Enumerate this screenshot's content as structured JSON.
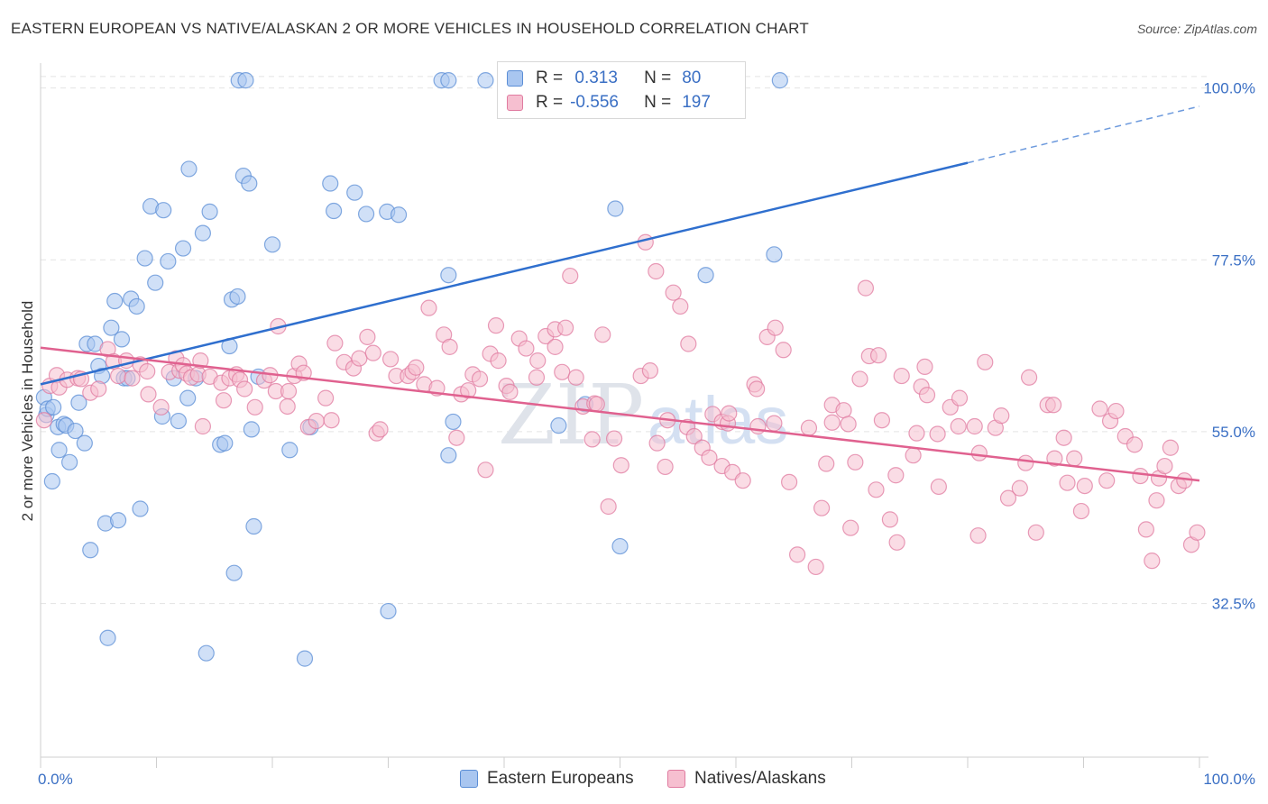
{
  "title": "EASTERN EUROPEAN VS NATIVE/ALASKAN 2 OR MORE VEHICLES IN HOUSEHOLD CORRELATION CHART",
  "source": "Source: ZipAtlas.com",
  "watermark": {
    "zip": "ZIP",
    "atlas": "atlas"
  },
  "legend": {
    "rows": [
      {
        "r_label": "R =",
        "r_value": " 0.313",
        "n_label": "N =",
        "n_value": "80",
        "color": "#a9c6f0",
        "border": "#5b8ed6"
      },
      {
        "r_label": "R =",
        "r_value": "-0.556",
        "n_label": "N =",
        "n_value": "197",
        "color": "#f6bfd0",
        "border": "#e07ba0"
      }
    ]
  },
  "bottom_legend": [
    {
      "label": "Eastern Europeans",
      "color": "#a9c6f0",
      "border": "#5b8ed6"
    },
    {
      "label": "Natives/Alaskans",
      "color": "#f6bfd0",
      "border": "#e07ba0"
    }
  ],
  "chart_data": {
    "type": "scatter",
    "title": "EASTERN EUROPEAN VS NATIVE/ALASKAN 2 OR MORE VEHICLES IN HOUSEHOLD CORRELATION CHART",
    "xlabel": "",
    "ylabel": "2 or more Vehicles in Household",
    "x_tick_labels": [
      "0.0%",
      "100.0%"
    ],
    "y_tick_labels": [
      "100.0%",
      "77.5%",
      "55.0%",
      "32.5%"
    ],
    "y_ticks": [
      100.0,
      77.5,
      55.0,
      32.5
    ],
    "xlim": [
      0,
      100
    ],
    "ylim": [
      12.5,
      102
    ],
    "grid": true,
    "legend_position": "top-center",
    "series": [
      {
        "name": "Eastern Europeans",
        "color": "#5b8ed6",
        "fill": "#a9c6f0",
        "trend": {
          "x0": 0,
          "y0": 61.2,
          "x1": 80,
          "y1": 90.2,
          "dashed_to_x": 100,
          "dashed_y1": 97.6,
          "color": "#2f6fce"
        },
        "points": [
          [
            0.3,
            59.5
          ],
          [
            0.5,
            57.2
          ],
          [
            0.6,
            58.0
          ],
          [
            1.0,
            48.5
          ],
          [
            1.1,
            58.2
          ],
          [
            1.5,
            55.6
          ],
          [
            1.6,
            52.6
          ],
          [
            2.0,
            56.0
          ],
          [
            2.2,
            55.8
          ],
          [
            2.5,
            51.0
          ],
          [
            3.0,
            55.1
          ],
          [
            3.3,
            58.8
          ],
          [
            3.8,
            53.5
          ],
          [
            4.0,
            66.5
          ],
          [
            4.3,
            39.5
          ],
          [
            4.7,
            66.5
          ],
          [
            5.0,
            63.6
          ],
          [
            5.3,
            62.3
          ],
          [
            5.6,
            43.0
          ],
          [
            5.8,
            28.0
          ],
          [
            6.1,
            68.6
          ],
          [
            6.4,
            72.1
          ],
          [
            6.7,
            43.4
          ],
          [
            7.0,
            67.1
          ],
          [
            7.2,
            62.0
          ],
          [
            7.5,
            62.0
          ],
          [
            7.8,
            72.4
          ],
          [
            8.3,
            71.4
          ],
          [
            8.6,
            44.9
          ],
          [
            9.0,
            77.7
          ],
          [
            9.5,
            84.5
          ],
          [
            9.9,
            74.5
          ],
          [
            10.5,
            57.0
          ],
          [
            10.6,
            84.0
          ],
          [
            11.0,
            77.3
          ],
          [
            11.5,
            62.0
          ],
          [
            11.9,
            56.4
          ],
          [
            12.3,
            79.0
          ],
          [
            12.7,
            59.4
          ],
          [
            12.8,
            89.4
          ],
          [
            13.4,
            62.0
          ],
          [
            14.0,
            81.0
          ],
          [
            14.3,
            26.0
          ],
          [
            14.6,
            83.8
          ],
          [
            15.5,
            53.3
          ],
          [
            15.9,
            53.5
          ],
          [
            16.3,
            66.2
          ],
          [
            16.5,
            72.3
          ],
          [
            16.7,
            36.5
          ],
          [
            17.0,
            72.7
          ],
          [
            17.5,
            88.5
          ],
          [
            18.0,
            87.5
          ],
          [
            18.2,
            55.3
          ],
          [
            18.4,
            42.6
          ],
          [
            18.8,
            62.2
          ],
          [
            20.0,
            79.5
          ],
          [
            21.5,
            52.6
          ],
          [
            22.8,
            25.3
          ],
          [
            23.3,
            55.6
          ],
          [
            25.0,
            87.5
          ],
          [
            25.3,
            83.9
          ],
          [
            27.1,
            86.3
          ],
          [
            28.1,
            83.5
          ],
          [
            29.9,
            83.8
          ],
          [
            30.9,
            83.4
          ],
          [
            30.0,
            31.5
          ],
          [
            34.6,
            101.0
          ],
          [
            35.2,
            101.0
          ],
          [
            35.2,
            75.5
          ],
          [
            35.2,
            51.9
          ],
          [
            35.6,
            56.3
          ],
          [
            38.4,
            101.0
          ],
          [
            44.7,
            55.8
          ],
          [
            47.0,
            58.6
          ],
          [
            49.6,
            84.2
          ],
          [
            50.0,
            40.0
          ],
          [
            57.4,
            75.5
          ],
          [
            63.3,
            78.2
          ],
          [
            63.8,
            101.0
          ],
          [
            17.1,
            101.0
          ],
          [
            17.7,
            101.0
          ]
        ]
      },
      {
        "name": "Natives/Alaskans",
        "color": "#e07ba0",
        "fill": "#f6bfd0",
        "trend": {
          "x0": 0,
          "y0": 66.0,
          "x1": 100,
          "y1": 48.6,
          "color": "#e0618f"
        },
        "points": [
          [
            0.3,
            56.5
          ],
          [
            0.8,
            61.0
          ],
          [
            1.4,
            62.4
          ],
          [
            1.6,
            60.8
          ],
          [
            2.3,
            61.8
          ],
          [
            3.2,
            62.0
          ],
          [
            3.5,
            61.9
          ],
          [
            4.3,
            60.1
          ],
          [
            5.0,
            60.6
          ],
          [
            5.8,
            65.8
          ],
          [
            6.3,
            64.2
          ],
          [
            6.7,
            62.3
          ],
          [
            7.4,
            64.3
          ],
          [
            7.9,
            62.0
          ],
          [
            8.6,
            63.8
          ],
          [
            9.2,
            62.9
          ],
          [
            9.3,
            59.9
          ],
          [
            10.4,
            58.2
          ],
          [
            11.1,
            62.8
          ],
          [
            11.7,
            64.6
          ],
          [
            12.0,
            63.0
          ],
          [
            12.3,
            63.7
          ],
          [
            12.6,
            62.6
          ],
          [
            13.0,
            62.1
          ],
          [
            13.6,
            62.5
          ],
          [
            13.8,
            64.3
          ],
          [
            14.0,
            55.7
          ],
          [
            14.6,
            62.2
          ],
          [
            15.6,
            61.4
          ],
          [
            15.8,
            59.1
          ],
          [
            16.3,
            62.0
          ],
          [
            16.9,
            62.5
          ],
          [
            17.2,
            61.8
          ],
          [
            17.6,
            60.6
          ],
          [
            18.5,
            58.2
          ],
          [
            19.3,
            61.7
          ],
          [
            19.8,
            62.4
          ],
          [
            20.3,
            60.3
          ],
          [
            20.5,
            68.8
          ],
          [
            21.3,
            58.3
          ],
          [
            21.4,
            60.3
          ],
          [
            21.9,
            62.3
          ],
          [
            22.3,
            63.9
          ],
          [
            22.7,
            62.7
          ],
          [
            23.1,
            55.6
          ],
          [
            23.8,
            56.4
          ],
          [
            24.6,
            59.4
          ],
          [
            25.1,
            56.5
          ],
          [
            25.4,
            66.6
          ],
          [
            26.2,
            64.1
          ],
          [
            27.0,
            63.3
          ],
          [
            27.5,
            64.6
          ],
          [
            28.2,
            67.4
          ],
          [
            28.7,
            65.3
          ],
          [
            29.0,
            54.8
          ],
          [
            29.3,
            55.3
          ],
          [
            30.2,
            64.5
          ],
          [
            30.7,
            62.3
          ],
          [
            31.7,
            62.3
          ],
          [
            32.1,
            62.8
          ],
          [
            32.4,
            63.4
          ],
          [
            33.1,
            61.2
          ],
          [
            33.5,
            71.2
          ],
          [
            34.2,
            60.7
          ],
          [
            34.8,
            67.7
          ],
          [
            35.3,
            66.1
          ],
          [
            35.9,
            54.2
          ],
          [
            36.3,
            59.9
          ],
          [
            36.9,
            60.4
          ],
          [
            37.3,
            62.5
          ],
          [
            37.9,
            61.9
          ],
          [
            38.4,
            50.0
          ],
          [
            38.8,
            65.2
          ],
          [
            39.3,
            68.9
          ],
          [
            39.5,
            64.3
          ],
          [
            40.2,
            61.0
          ],
          [
            40.5,
            60.2
          ],
          [
            41.3,
            67.2
          ],
          [
            41.9,
            65.9
          ],
          [
            42.8,
            62.1
          ],
          [
            42.9,
            64.3
          ],
          [
            43.6,
            67.5
          ],
          [
            44.4,
            66.1
          ],
          [
            44.4,
            68.4
          ],
          [
            45.0,
            62.8
          ],
          [
            45.3,
            68.6
          ],
          [
            45.7,
            75.4
          ],
          [
            46.2,
            62.1
          ],
          [
            46.8,
            58.3
          ],
          [
            47.6,
            54.0
          ],
          [
            47.8,
            58.7
          ],
          [
            48.0,
            58.6
          ],
          [
            48.5,
            67.7
          ],
          [
            49.0,
            45.2
          ],
          [
            49.5,
            54.1
          ],
          [
            50.1,
            50.6
          ],
          [
            51.8,
            62.3
          ],
          [
            52.6,
            63.0
          ],
          [
            52.2,
            79.8
          ],
          [
            53.1,
            76.0
          ],
          [
            53.2,
            53.5
          ],
          [
            53.9,
            50.4
          ],
          [
            54.1,
            56.5
          ],
          [
            54.6,
            73.2
          ],
          [
            55.2,
            71.4
          ],
          [
            55.8,
            55.6
          ],
          [
            55.9,
            66.5
          ],
          [
            56.4,
            54.4
          ],
          [
            57.1,
            52.9
          ],
          [
            57.7,
            51.6
          ],
          [
            58.0,
            57.3
          ],
          [
            58.8,
            50.5
          ],
          [
            58.8,
            56.3
          ],
          [
            59.3,
            56.1
          ],
          [
            59.4,
            57.4
          ],
          [
            59.7,
            49.7
          ],
          [
            60.6,
            48.6
          ],
          [
            61.6,
            61.2
          ],
          [
            61.8,
            60.6
          ],
          [
            61.9,
            55.7
          ],
          [
            62.7,
            67.4
          ],
          [
            63.3,
            56.1
          ],
          [
            63.4,
            68.6
          ],
          [
            64.1,
            65.7
          ],
          [
            64.6,
            48.4
          ],
          [
            65.3,
            38.9
          ],
          [
            66.3,
            55.5
          ],
          [
            66.9,
            37.3
          ],
          [
            67.4,
            45.0
          ],
          [
            67.8,
            50.8
          ],
          [
            68.3,
            58.5
          ],
          [
            68.3,
            56.2
          ],
          [
            69.3,
            57.8
          ],
          [
            69.7,
            56.0
          ],
          [
            69.9,
            42.4
          ],
          [
            70.3,
            51.0
          ],
          [
            70.7,
            61.9
          ],
          [
            71.2,
            73.8
          ],
          [
            71.5,
            64.9
          ],
          [
            72.1,
            47.4
          ],
          [
            72.3,
            65.0
          ],
          [
            72.6,
            56.5
          ],
          [
            73.3,
            43.5
          ],
          [
            73.8,
            49.3
          ],
          [
            73.9,
            40.5
          ],
          [
            74.3,
            62.3
          ],
          [
            75.3,
            51.9
          ],
          [
            75.6,
            54.8
          ],
          [
            76.0,
            60.9
          ],
          [
            76.3,
            63.5
          ],
          [
            76.5,
            59.8
          ],
          [
            77.4,
            54.7
          ],
          [
            77.5,
            47.8
          ],
          [
            78.5,
            58.2
          ],
          [
            79.2,
            55.7
          ],
          [
            79.3,
            59.4
          ],
          [
            80.6,
            55.7
          ],
          [
            80.9,
            41.4
          ],
          [
            81.0,
            52.2
          ],
          [
            81.5,
            64.1
          ],
          [
            82.4,
            55.5
          ],
          [
            82.9,
            57.1
          ],
          [
            83.5,
            46.3
          ],
          [
            84.5,
            47.6
          ],
          [
            85.0,
            50.9
          ],
          [
            85.3,
            62.1
          ],
          [
            85.9,
            41.8
          ],
          [
            86.9,
            58.5
          ],
          [
            87.4,
            58.5
          ],
          [
            87.5,
            51.5
          ],
          [
            88.3,
            54.2
          ],
          [
            88.6,
            48.3
          ],
          [
            89.2,
            51.5
          ],
          [
            89.8,
            44.6
          ],
          [
            90.1,
            47.9
          ],
          [
            91.4,
            58.0
          ],
          [
            92.0,
            48.6
          ],
          [
            92.3,
            56.4
          ],
          [
            92.8,
            57.7
          ],
          [
            93.6,
            54.4
          ],
          [
            94.4,
            53.3
          ],
          [
            94.9,
            49.2
          ],
          [
            95.4,
            42.2
          ],
          [
            95.9,
            38.1
          ],
          [
            96.3,
            46.0
          ],
          [
            96.5,
            48.9
          ],
          [
            97.0,
            50.5
          ],
          [
            97.5,
            52.9
          ],
          [
            98.2,
            47.9
          ],
          [
            98.7,
            48.6
          ],
          [
            99.3,
            40.2
          ],
          [
            99.8,
            41.8
          ]
        ]
      }
    ]
  }
}
